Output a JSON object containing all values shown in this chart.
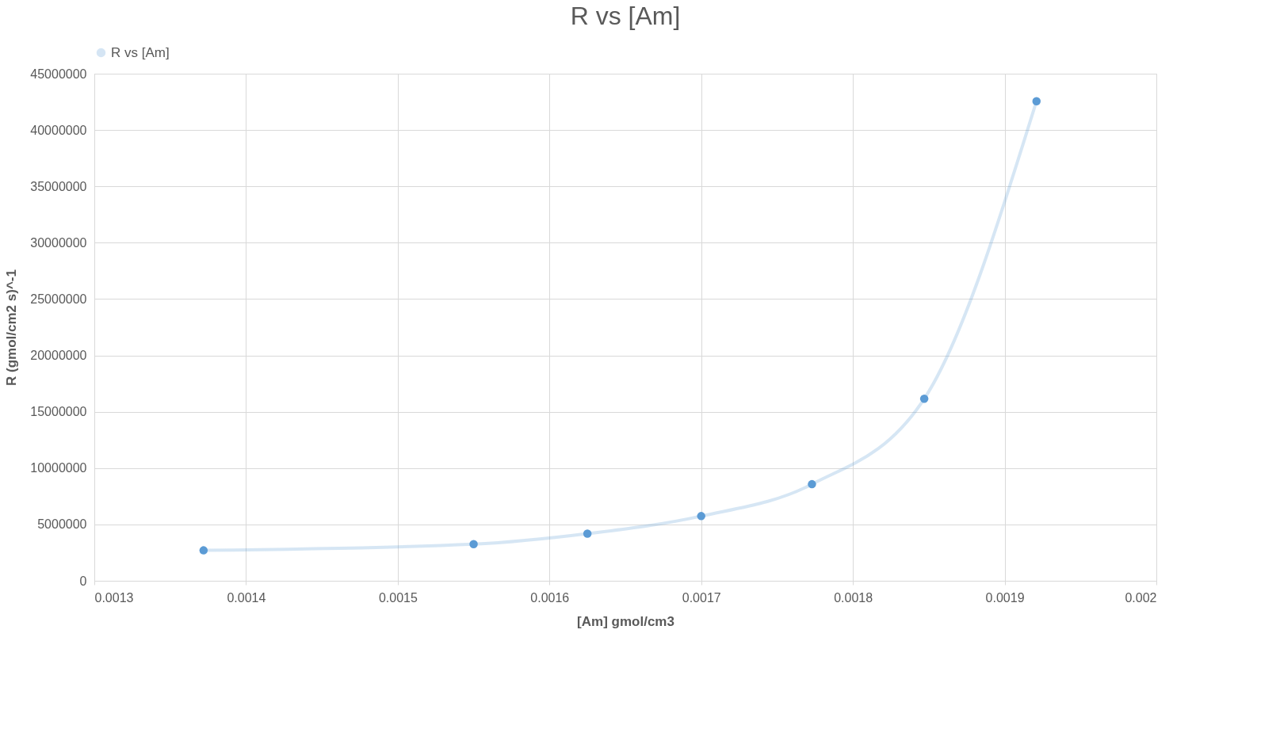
{
  "chart_data": {
    "type": "line",
    "title": "R vs [Am]",
    "xlabel": "[Am] gmol/cm3",
    "ylabel": "R (gmol/cm2 s)^-1",
    "x": [
      0.001372,
      0.00155,
      0.001625,
      0.0017,
      0.001773,
      0.001847,
      0.001921
    ],
    "series": [
      {
        "name": "R vs [Am]",
        "color": "#5b9bd5",
        "values": [
          2700000,
          3250000,
          4180000,
          5740000,
          8570000,
          16150000,
          42560000
        ]
      }
    ],
    "xlim": [
      0.0013,
      0.002
    ],
    "xticks": [
      0.0013,
      0.0014,
      0.0015,
      0.0016,
      0.0017,
      0.0018,
      0.0019,
      0.002
    ],
    "ylim": [
      0,
      45000000
    ],
    "yticks": [
      0,
      5000000,
      10000000,
      15000000,
      20000000,
      25000000,
      30000000,
      35000000,
      40000000,
      45000000
    ],
    "grid": true,
    "legend": "top",
    "marker": "circle",
    "line_style": "solid"
  }
}
